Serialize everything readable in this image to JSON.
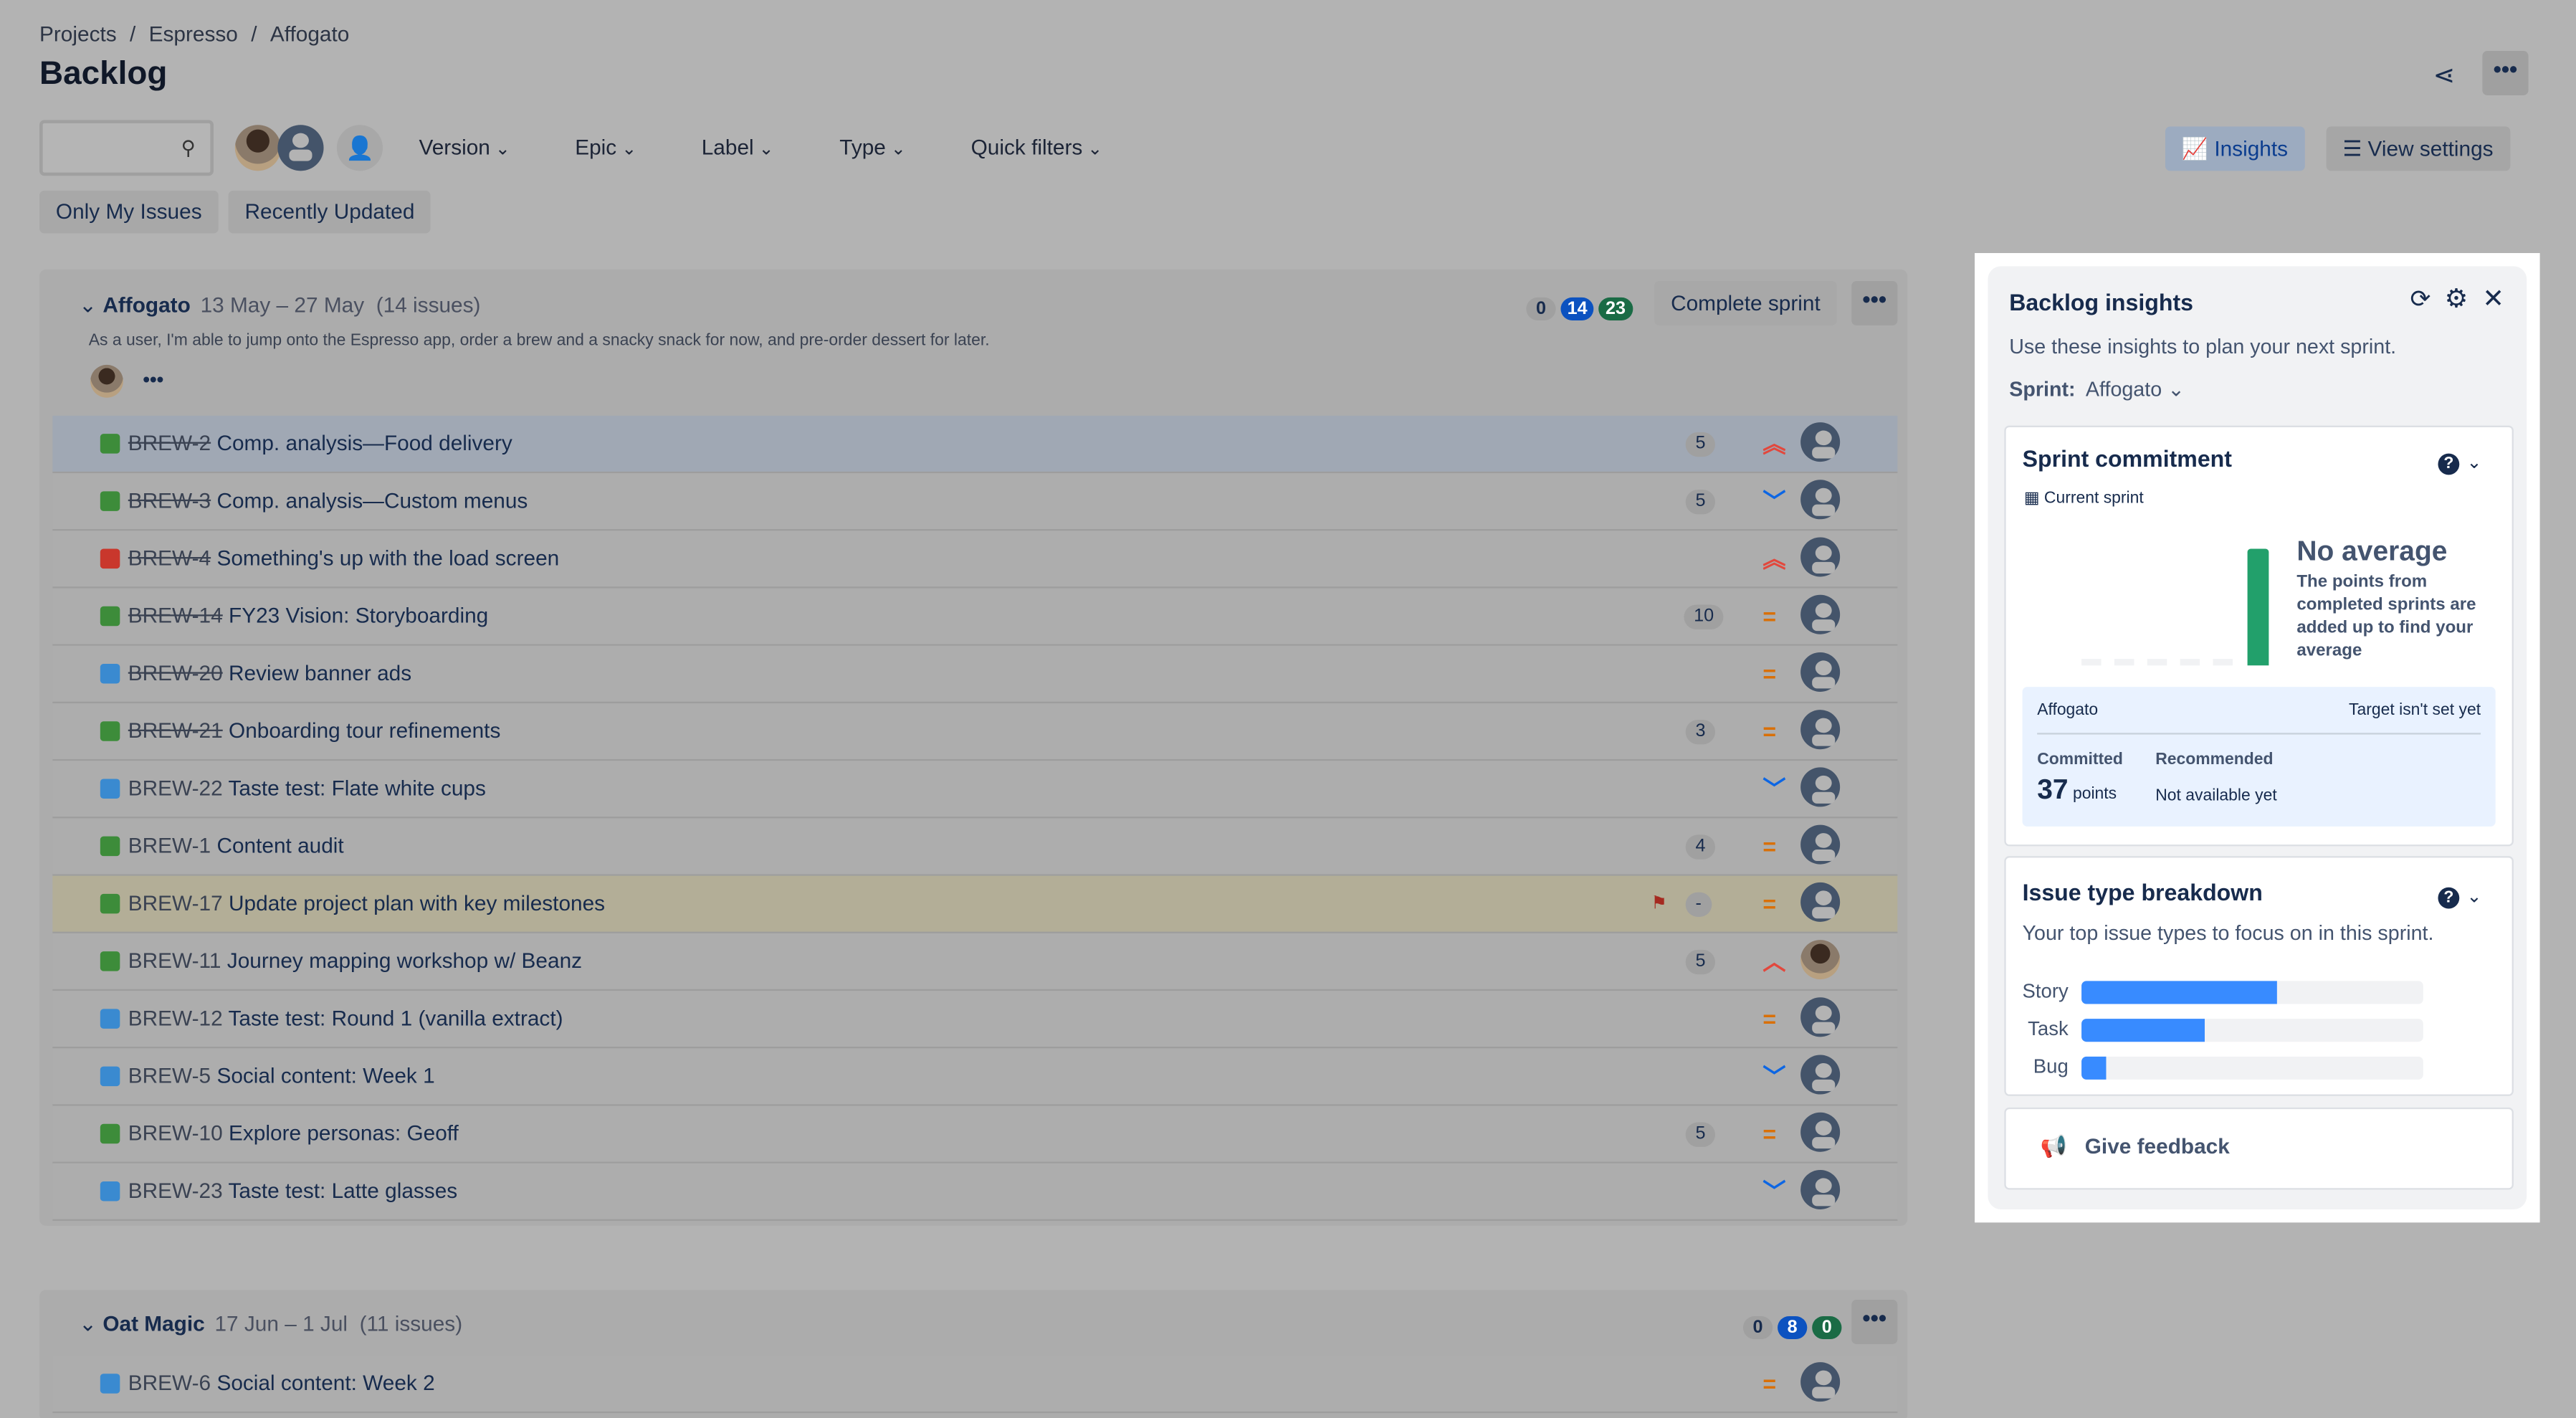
{
  "breadcrumb": [
    "Projects",
    "Espresso",
    "Affogato"
  ],
  "page_title": "Backlog",
  "search": {
    "placeholder": ""
  },
  "filters": [
    "Version",
    "Epic",
    "Label",
    "Type",
    "Quick filters"
  ],
  "quick_filters": [
    "Only My Issues",
    "Recently Updated"
  ],
  "header_buttons": {
    "insights": "Insights",
    "view_settings": "View settings"
  },
  "sprint1": {
    "name": "Affogato",
    "dates": "13 May – 27 May",
    "count": "(14 issues)",
    "goal": "As a user, I'm able to jump onto the Espresso app, order a brew and a snacky snack for now, and pre-order dessert for later.",
    "badges": [
      "0",
      "14",
      "23"
    ],
    "complete_label": "Complete sprint",
    "issues": [
      {
        "key": "BREW-2",
        "title": "Comp. analysis—Food delivery",
        "type": "story",
        "points": "5",
        "priority": "highest",
        "done": true,
        "selected": true
      },
      {
        "key": "BREW-3",
        "title": "Comp. analysis—Custom menus",
        "type": "story",
        "points": "5",
        "priority": "low",
        "done": true
      },
      {
        "key": "BREW-4",
        "title": "Something's up with the load screen",
        "type": "bug",
        "points": "",
        "priority": "highest",
        "done": true
      },
      {
        "key": "BREW-14",
        "title": "FY23 Vision: Storyboarding",
        "type": "story",
        "points": "10",
        "priority": "medium",
        "done": true
      },
      {
        "key": "BREW-20",
        "title": "Review banner ads",
        "type": "task",
        "points": "",
        "priority": "medium",
        "done": true
      },
      {
        "key": "BREW-21",
        "title": "Onboarding tour refinements",
        "type": "story",
        "points": "3",
        "priority": "medium",
        "done": true
      },
      {
        "key": "BREW-22",
        "title": "Taste test: Flate white cups",
        "type": "task",
        "points": "",
        "priority": "low"
      },
      {
        "key": "BREW-1",
        "title": "Content audit",
        "type": "story",
        "points": "4",
        "priority": "medium"
      },
      {
        "key": "BREW-17",
        "title": "Update project plan with key milestones",
        "type": "story",
        "points": "-",
        "priority": "medium",
        "flagged": true
      },
      {
        "key": "BREW-11",
        "title": "Journey mapping workshop w/ Beanz",
        "type": "story",
        "points": "5",
        "priority": "high",
        "photo": true
      },
      {
        "key": "BREW-12",
        "title": "Taste test: Round 1 (vanilla extract)",
        "type": "task",
        "points": "",
        "priority": "medium"
      },
      {
        "key": "BREW-5",
        "title": "Social content: Week 1",
        "type": "task",
        "points": "",
        "priority": "low"
      },
      {
        "key": "BREW-10",
        "title": "Explore personas: Geoff",
        "type": "story",
        "points": "5",
        "priority": "medium"
      },
      {
        "key": "BREW-23",
        "title": "Taste test: Latte glasses",
        "type": "task",
        "points": "",
        "priority": "low"
      }
    ]
  },
  "sprint2": {
    "name": "Oat Magic",
    "dates": "17 Jun – 1 Jul",
    "count": "(11 issues)",
    "badges": [
      "0",
      "8",
      "0"
    ],
    "issues": [
      {
        "key": "BREW-6",
        "title": "Social content: Week 2",
        "type": "task",
        "points": "",
        "priority": "medium"
      }
    ]
  },
  "insights": {
    "title": "Backlog insights",
    "subtitle": "Use these insights to plan your next sprint.",
    "sprint_label": "Sprint:",
    "sprint_value": "Affogato",
    "commitment": {
      "title": "Sprint commitment",
      "current": "Current sprint",
      "no_avg": "No average",
      "no_avg_desc": "The points from completed sprints are added up to find your average",
      "sprint": "Affogato",
      "target": "Target isn't set yet",
      "committed_label": "Committed",
      "committed_value": "37",
      "committed_unit": "points",
      "recommended_label": "Recommended",
      "recommended_value": "Not available yet",
      "bar_color": "#22a06b"
    },
    "breakdown": {
      "title": "Issue type breakdown",
      "subtitle": "Your top issue types to focus on in this sprint.",
      "items": [
        {
          "label": "Story",
          "fraction": 0.57
        },
        {
          "label": "Task",
          "fraction": 0.36
        },
        {
          "label": "Bug",
          "fraction": 0.07
        }
      ]
    },
    "feedback": "Give feedback"
  },
  "colors": {
    "accent": "#388bff",
    "high": "#e2483d",
    "medium": "#d97008",
    "low": "#0c66e4"
  }
}
